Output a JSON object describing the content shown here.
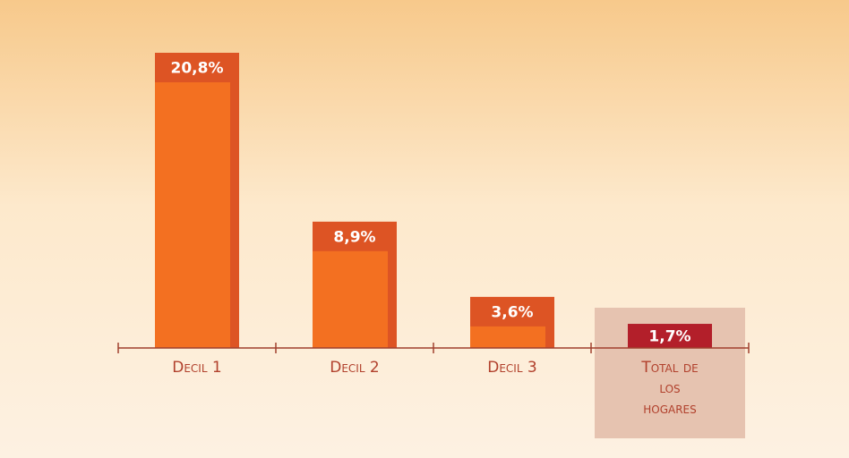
{
  "chart_data": {
    "type": "bar",
    "categories": [
      "Decil 1",
      "Decil 2",
      "Decil 3",
      "Total de los hogares"
    ],
    "values": [
      20.8,
      8.9,
      3.6,
      1.7
    ],
    "value_labels": [
      "20,8%",
      "8,9%",
      "3,6%",
      "1,7%"
    ],
    "colors": [
      "#f37021",
      "#f37021",
      "#f37021",
      "#b31f2a"
    ],
    "highlight": 3
  }
}
